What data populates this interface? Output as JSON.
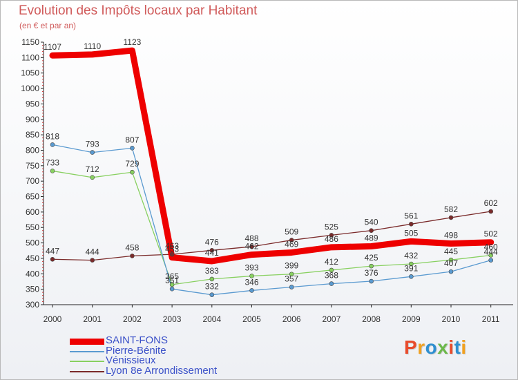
{
  "title": "Evolution des Impôts locaux par Habitant",
  "subtitle": "(en € et par an)",
  "logo_text": "Proxiti",
  "logo_colors": [
    "#e84b2c",
    "#f0a020",
    "#2e8fd0",
    "#6cb84a",
    "#e84b2c",
    "#2e8fd0",
    "#f0a020"
  ],
  "chart_data": {
    "type": "line",
    "title": "Evolution des Impôts locaux par Habitant",
    "subtitle": "(en € et par an)",
    "xlabel": "",
    "ylabel": "",
    "x": [
      2000,
      2001,
      2002,
      2003,
      2004,
      2005,
      2006,
      2007,
      2008,
      2009,
      2010,
      2011
    ],
    "ylim": [
      300,
      1150
    ],
    "yticks": [
      300,
      350,
      400,
      450,
      500,
      550,
      600,
      650,
      700,
      750,
      800,
      850,
      900,
      950,
      1000,
      1050,
      1100,
      1150
    ],
    "grid": false,
    "legend_position": "bottom-left",
    "series": [
      {
        "name": "Lyon 8e  Arrondissement",
        "color": "#7a2a2a",
        "values": [
          447,
          444,
          458,
          463,
          476,
          488,
          509,
          525,
          540,
          561,
          582,
          602
        ]
      },
      {
        "name": "Vénissieux",
        "color": "#88d060",
        "values": [
          733,
          712,
          729,
          365,
          383,
          393,
          399,
          412,
          425,
          432,
          445,
          460
        ]
      },
      {
        "name": "Pierre-Bénite",
        "color": "#5a9ad0",
        "values": [
          818,
          793,
          807,
          351,
          332,
          346,
          357,
          368,
          376,
          391,
          407,
          444
        ]
      },
      {
        "name": "SAINT-FONS",
        "color": "#ee0000",
        "values": [
          1107,
          1110,
          1123,
          453,
          441,
          462,
          469,
          486,
          489,
          505,
          498,
          502
        ]
      }
    ]
  }
}
